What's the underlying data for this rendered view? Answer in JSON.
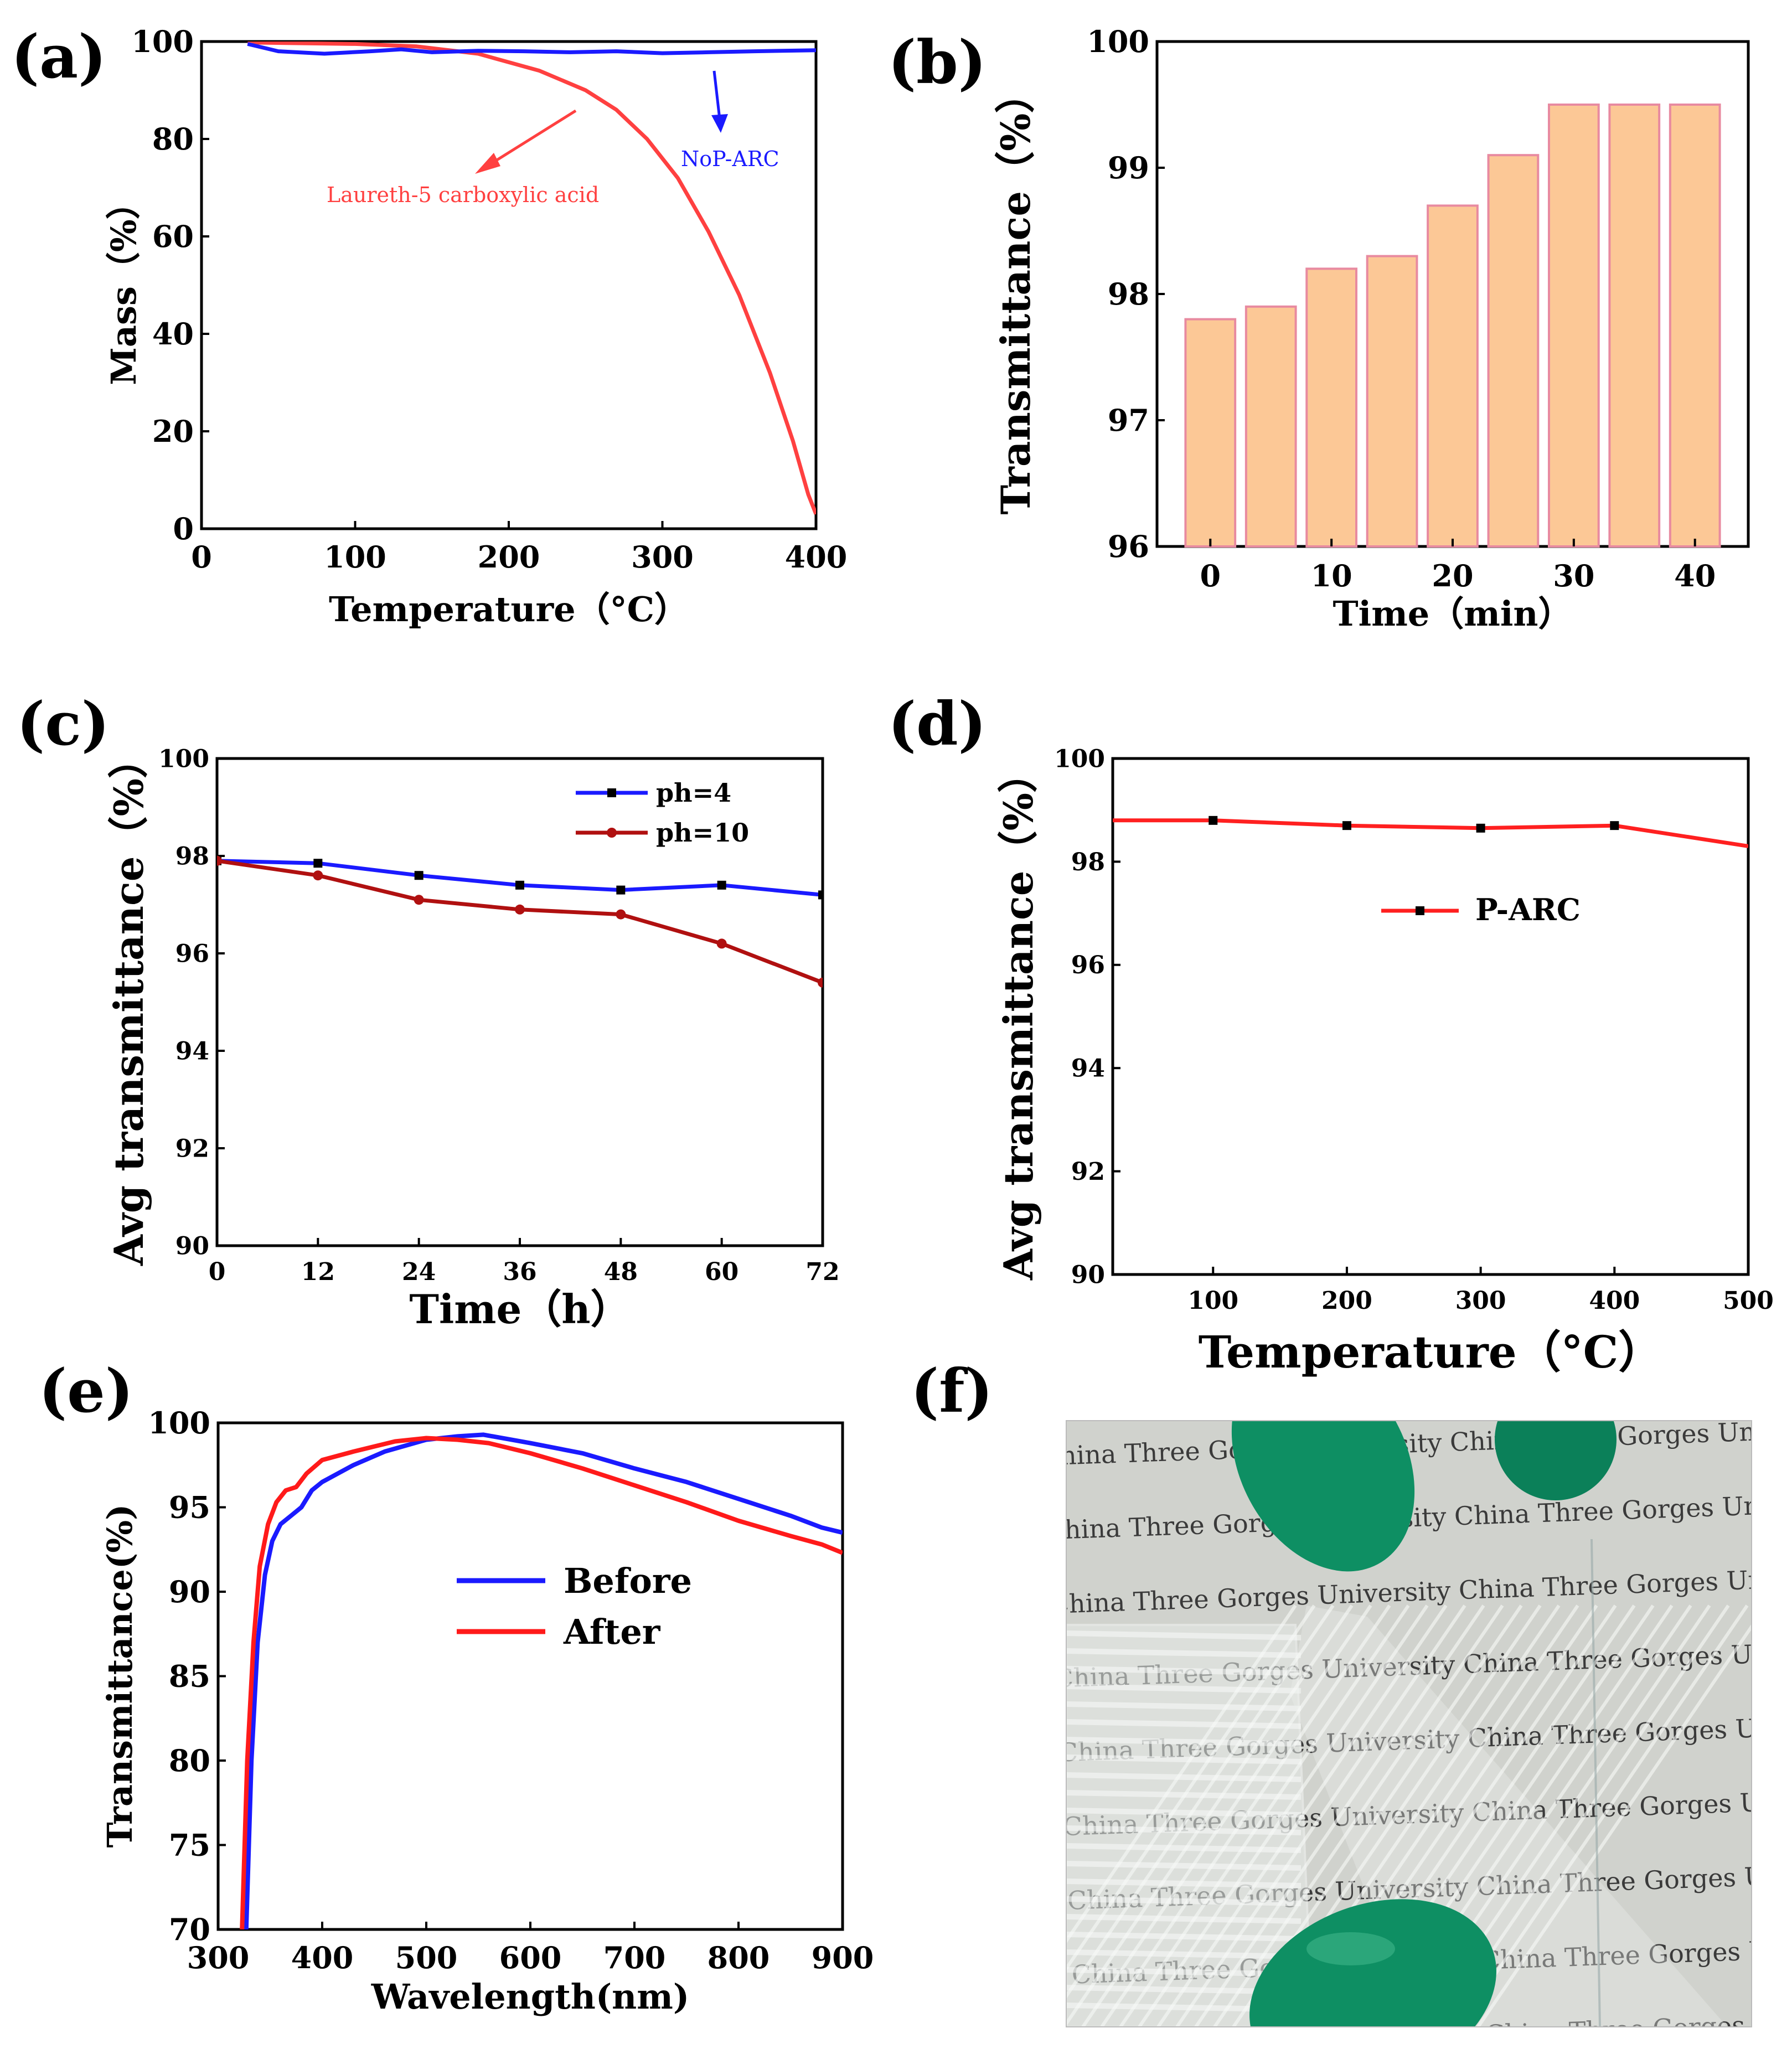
{
  "panel_labels": [
    "(a)",
    "(b)",
    "(c)",
    "(d)",
    "(e)",
    "(f)"
  ],
  "colors": {
    "blue": "#1a1aff",
    "red": "#ff4040",
    "dark_red": "#b01010",
    "bar_fill": "#fcc896",
    "bar_edge": "#e88aa0",
    "photo_bg": "#c9cbc6",
    "glove": "#0e8f63"
  },
  "chart_data": [
    {
      "panel": "(a)",
      "type": "line",
      "xlabel": "Temperature（°C）",
      "ylabel": "Mass（%）",
      "xlim": [
        0,
        400
      ],
      "ylim": [
        0,
        100
      ],
      "xticks": [
        0,
        100,
        200,
        300,
        400
      ],
      "yticks": [
        0,
        20,
        40,
        60,
        80,
        100
      ],
      "series": [
        {
          "name": "NoP-ARC",
          "color": "#1a1aff",
          "x": [
            30,
            50,
            80,
            110,
            130,
            150,
            180,
            210,
            240,
            270,
            300,
            330,
            360,
            400
          ],
          "y": [
            99.5,
            98.0,
            97.5,
            98.0,
            98.4,
            97.8,
            98.1,
            98.0,
            97.8,
            98.0,
            97.6,
            97.8,
            98.0,
            98.2
          ]
        },
        {
          "name": "Laureth-5 carboxylic acid",
          "color": "#ff4040",
          "x": [
            30,
            100,
            140,
            180,
            220,
            250,
            270,
            290,
            310,
            330,
            350,
            370,
            385,
            395,
            400
          ],
          "y": [
            99.8,
            99.5,
            99.0,
            97.5,
            94.0,
            90.0,
            86.0,
            80.0,
            72.0,
            61.0,
            48.0,
            32.0,
            18.0,
            7.0,
            3.0
          ]
        }
      ],
      "annotations": [
        "Laureth-5 carboxylic acid",
        "NoP-ARC"
      ]
    },
    {
      "panel": "(b)",
      "type": "bar",
      "xlabel": "Time（min）",
      "ylabel": "Transmittance（%）",
      "x": [
        0,
        5,
        10,
        15,
        20,
        25,
        30,
        35,
        40
      ],
      "values": [
        97.8,
        97.9,
        98.2,
        98.3,
        98.7,
        99.1,
        99.5,
        99.5,
        99.5
      ],
      "xlim": [
        -4.4,
        44.4
      ],
      "ylim": [
        96,
        100
      ],
      "xticks": [
        0,
        10,
        20,
        30,
        40
      ],
      "yticks": [
        96,
        97,
        98,
        99,
        100
      ]
    },
    {
      "panel": "(c)",
      "type": "line",
      "xlabel": "Time（h）",
      "ylabel": "Avg transmittance（%）",
      "xlim": [
        0,
        72
      ],
      "ylim": [
        90,
        100
      ],
      "xticks": [
        0,
        12,
        24,
        36,
        48,
        60,
        72
      ],
      "yticks": [
        90,
        92,
        94,
        96,
        98,
        100
      ],
      "series": [
        {
          "name": "ph=4",
          "color": "#1a1aff",
          "marker": "square",
          "x": [
            0,
            12,
            24,
            36,
            48,
            60,
            72
          ],
          "y": [
            97.9,
            97.85,
            97.6,
            97.4,
            97.3,
            97.4,
            97.2
          ]
        },
        {
          "name": "ph=10",
          "color": "#b01010",
          "marker": "circle",
          "x": [
            0,
            12,
            24,
            36,
            48,
            60,
            72
          ],
          "y": [
            97.9,
            97.6,
            97.1,
            96.9,
            96.8,
            96.2,
            95.4
          ]
        }
      ],
      "legend": [
        "ph=4",
        "ph=10"
      ]
    },
    {
      "panel": "(d)",
      "type": "line",
      "xlabel": "Temperature（°C）",
      "ylabel": "Avg transmittance（%）",
      "xlim": [
        25,
        500
      ],
      "ylim": [
        90,
        100
      ],
      "xticks": [
        100,
        200,
        300,
        400,
        500
      ],
      "yticks": [
        90,
        92,
        94,
        96,
        98,
        100
      ],
      "series": [
        {
          "name": "P-ARC",
          "color": "#ff2020",
          "marker": "square",
          "x": [
            25,
            100,
            200,
            300,
            400,
            500
          ],
          "y": [
            98.8,
            98.8,
            98.7,
            98.65,
            98.7,
            98.3
          ]
        }
      ],
      "legend": [
        "P-ARC"
      ]
    },
    {
      "panel": "(e)",
      "type": "line",
      "xlabel": "Wavelength(nm)",
      "ylabel": "Transmittance(%)",
      "xlim": [
        300,
        900
      ],
      "ylim": [
        70,
        100
      ],
      "xticks": [
        300,
        400,
        500,
        600,
        700,
        800,
        900
      ],
      "yticks": [
        70,
        75,
        80,
        85,
        90,
        95,
        100
      ],
      "series": [
        {
          "name": "Before",
          "color": "#1a1aff",
          "x": [
            327,
            332,
            338,
            345,
            352,
            360,
            370,
            380,
            390,
            400,
            430,
            460,
            500,
            530,
            555,
            600,
            650,
            700,
            750,
            800,
            850,
            880,
            900
          ],
          "y": [
            70,
            80,
            87,
            91,
            93,
            94,
            94.5,
            95,
            96,
            96.5,
            97.5,
            98.3,
            99,
            99.2,
            99.3,
            98.8,
            98.2,
            97.3,
            96.5,
            95.5,
            94.5,
            93.8,
            93.5
          ]
        },
        {
          "name": "After",
          "color": "#ff1a1a",
          "x": [
            323,
            328,
            334,
            340,
            348,
            356,
            365,
            375,
            385,
            400,
            430,
            470,
            500,
            530,
            560,
            600,
            650,
            700,
            750,
            800,
            850,
            880,
            900
          ],
          "y": [
            70,
            80,
            87,
            91.5,
            94,
            95.3,
            96,
            96.2,
            97,
            97.8,
            98.3,
            98.9,
            99.1,
            99,
            98.8,
            98.2,
            97.3,
            96.3,
            95.3,
            94.2,
            93.3,
            92.8,
            92.3
          ]
        }
      ],
      "legend": [
        "Before",
        "After"
      ]
    }
  ],
  "photo": {
    "panel": "(f)",
    "text_lines": [
      "China Three Gorges University",
      "China Three Gorges University",
      "China Three Gorges University",
      "China Three Gorges University",
      "China Three Gorges University",
      "China Three Gorges University",
      "China Three Gorges University",
      "China Three Gorges University",
      "China Three Gorges University"
    ]
  }
}
